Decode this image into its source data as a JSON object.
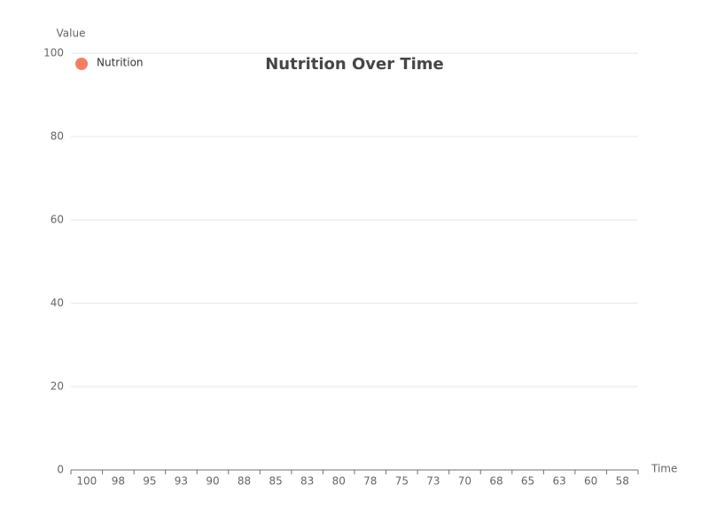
{
  "chart_data": {
    "type": "scatter",
    "title": "Nutrition Over Time",
    "x_label": "Time",
    "y_label": "Value",
    "categories": [
      "100",
      "98",
      "95",
      "93",
      "90",
      "88",
      "85",
      "83",
      "80",
      "78",
      "75",
      "73",
      "70",
      "68",
      "65",
      "63",
      "60",
      "58"
    ],
    "series": [
      {
        "name": "Nutrition",
        "color": "#f77e62",
        "values": [
          null,
          null,
          null,
          null,
          null,
          null,
          null,
          null,
          null,
          null,
          null,
          null,
          null,
          null,
          null,
          null,
          null,
          null
        ]
      }
    ],
    "ylim": [
      0,
      100
    ],
    "yticks": [
      0,
      20,
      40,
      60,
      80,
      100
    ],
    "grid": true,
    "legend": "top-left"
  }
}
